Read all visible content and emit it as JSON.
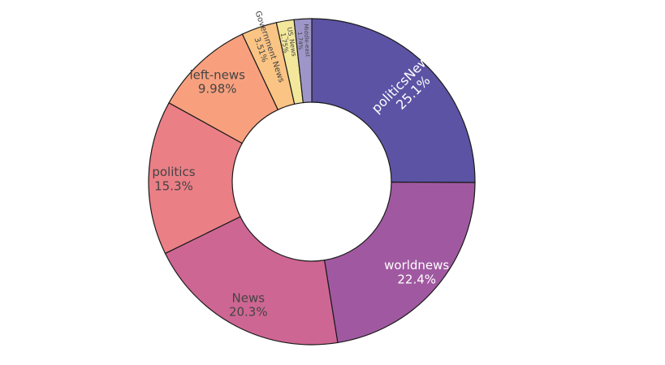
{
  "chart_data": {
    "type": "pie",
    "hole": true,
    "categories": [
      "politicsNews",
      "worldnews",
      "News",
      "politics",
      "left-news",
      "Government News",
      "US_News",
      "Middle-east"
    ],
    "values": [
      25.1,
      22.4,
      20.3,
      15.3,
      9.98,
      3.51,
      1.75,
      1.74
    ],
    "labels": [
      "25.1%",
      "22.4%",
      "20.3%",
      "15.3%",
      "9.98%",
      "3.51%",
      "1.75%",
      "1.74%"
    ],
    "colors": [
      "#5c53a5",
      "#a059a0",
      "#ce6693",
      "#eb7f86",
      "#f8a07e",
      "#fac484",
      "#f3e79b",
      "#9e96c8"
    ],
    "label_colors": [
      "#ffffff",
      "#ffffff",
      "#444444",
      "#444444",
      "#444444",
      "#444444",
      "#444444",
      "#444444"
    ],
    "title": "",
    "legend": "none"
  }
}
